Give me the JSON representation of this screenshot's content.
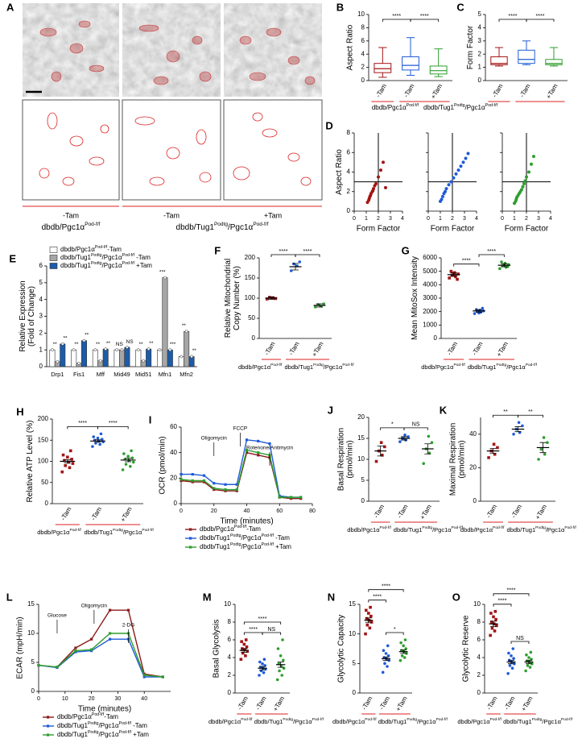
{
  "genotypes": [
    [
      "dbdb/Pgc1α",
      "Pod-f/f"
    ],
    [
      "dbdb/Tug1",
      "Podtg",
      "/Pgc1α",
      "Pod-f/f"
    ]
  ],
  "panel_a": {
    "panel": "A",
    "labels": [
      "-Tam",
      "-Tam",
      "+Tam"
    ]
  },
  "chart_data": [
    {
      "type": "box",
      "panel": "B",
      "ylabel": "Aspect Ratio",
      "ylim": [
        0,
        10
      ],
      "yticks": [
        0,
        2,
        4,
        6,
        8,
        10
      ],
      "categories": [
        "-Tam",
        "-Tam",
        "+Tam"
      ],
      "colors": [
        "#a31515",
        "#1f5bd8",
        "#2e9e2e"
      ],
      "boxes": [
        {
          "low": 0.5,
          "q1": 1.2,
          "median": 1.8,
          "q3": 2.6,
          "high": 5.0
        },
        {
          "low": 0.8,
          "q1": 1.6,
          "median": 2.3,
          "q3": 3.6,
          "high": 6.5
        },
        {
          "low": 0.6,
          "q1": 1.0,
          "median": 1.5,
          "q3": 2.2,
          "high": 4.8
        }
      ],
      "annotations": [
        "****",
        "****"
      ]
    },
    {
      "type": "box",
      "panel": "C",
      "ylabel": "Form Factor",
      "ylim": [
        0,
        5
      ],
      "yticks": [
        0,
        1,
        2,
        3,
        4,
        5
      ],
      "categories": [
        "-Tam",
        "-Tam",
        "+Tam"
      ],
      "colors": [
        "#a31515",
        "#1f5bd8",
        "#2e9e2e"
      ],
      "boxes": [
        {
          "low": 1.1,
          "q1": 1.2,
          "median": 1.3,
          "q3": 1.8,
          "high": 2.5
        },
        {
          "low": 1.2,
          "q1": 1.3,
          "median": 1.6,
          "q3": 2.3,
          "high": 3.0
        },
        {
          "low": 1.1,
          "q1": 1.2,
          "median": 1.3,
          "q3": 1.6,
          "high": 2.5
        }
      ],
      "annotations": [
        "****",
        "****"
      ]
    },
    {
      "type": "scatter",
      "panel": "D",
      "ylabel": "Aspect Ratio",
      "xlabel": "Form Factor",
      "xlim": [
        0,
        4
      ],
      "xticks": [
        0,
        1,
        2,
        3,
        4
      ],
      "ylim": [
        0,
        8
      ],
      "yticks": [
        0,
        2,
        4,
        6,
        8
      ],
      "ref_x": 2,
      "ref_y": 3,
      "series": [
        {
          "color": "#a31515",
          "x": [
            1.1,
            1.2,
            1.25,
            1.3,
            1.35,
            1.4,
            1.5,
            1.55,
            1.6,
            1.7,
            1.8,
            2.0,
            2.2,
            2.4,
            2.6
          ],
          "y": [
            0.9,
            1.1,
            1.3,
            1.5,
            1.6,
            1.8,
            2.0,
            2.1,
            2.3,
            2.6,
            2.8,
            3.5,
            4.2,
            5.0,
            2.4
          ]
        },
        {
          "color": "#1f5bd8",
          "x": [
            1.0,
            1.1,
            1.2,
            1.3,
            1.4,
            1.5,
            1.7,
            1.9,
            2.1,
            2.3,
            2.5,
            2.7,
            2.9,
            3.1,
            3.3
          ],
          "y": [
            1.0,
            1.2,
            1.5,
            1.8,
            2.0,
            2.3,
            2.7,
            3.0,
            3.4,
            3.8,
            4.2,
            4.6,
            5.0,
            5.4,
            5.9
          ]
        },
        {
          "color": "#2e9e2e",
          "x": [
            1.0,
            1.1,
            1.15,
            1.2,
            1.3,
            1.4,
            1.5,
            1.6,
            1.7,
            1.8,
            1.9,
            2.0,
            2.2,
            2.4,
            2.6
          ],
          "y": [
            0.8,
            1.0,
            1.2,
            1.4,
            1.6,
            1.8,
            2.0,
            2.2,
            2.5,
            2.8,
            3.1,
            3.5,
            4.0,
            4.8,
            5.6
          ]
        }
      ]
    },
    {
      "type": "bar",
      "panel": "E",
      "ylabel": [
        "Relative Expression",
        "(Fold of Change)"
      ],
      "ylim": [
        0,
        6
      ],
      "yticks": [
        0,
        1,
        2,
        3,
        4,
        5,
        6
      ],
      "categories": [
        "Drp1",
        "Fis1",
        "Mff",
        "Mid49",
        "Mid51",
        "Mfn1",
        "Mfn2"
      ],
      "series": [
        {
          "name": [
            "dbdb/Pgc1α",
            "Pod-f/f",
            "-Tam"
          ],
          "color": "#ffffff",
          "values": [
            1.0,
            1.0,
            1.0,
            1.0,
            1.0,
            1.0,
            0.6
          ]
        },
        {
          "name": [
            "dbdb/Tug1",
            "Podtg",
            "/Pgc1α",
            "Pod-f/f",
            " -Tam"
          ],
          "color": "#a6a6a6",
          "values": [
            0.3,
            0.2,
            0.35,
            1.0,
            0.35,
            5.3,
            2.1
          ]
        },
        {
          "name": [
            "dbdb/Tug1",
            "Podtg",
            "/Pgc1α",
            "Pod-f/f",
            " +Tam"
          ],
          "color": "#1c5ca8",
          "values": [
            1.35,
            1.55,
            1.05,
            1.15,
            1.05,
            1.0,
            0.6
          ]
        }
      ],
      "annotations": [
        "**",
        "**",
        "**",
        "**",
        "**",
        "**",
        "NS",
        "NS",
        "**",
        "**",
        "***",
        "***",
        "**",
        "**"
      ]
    },
    {
      "type": "dot",
      "panel": "F",
      "ylabel": [
        "Relative Mitochondrial",
        "Copy Number (%)"
      ],
      "ylim": [
        0,
        200
      ],
      "yticks": [
        0,
        50,
        100,
        150,
        200
      ],
      "categories": [
        "-Tam",
        "-Tam",
        "+Tam"
      ],
      "colors": [
        "#a31515",
        "#1f5bd8",
        "#2e9e2e"
      ],
      "values": [
        100,
        178,
        82
      ],
      "errors": [
        3,
        8,
        4
      ],
      "points": [
        [
          98,
          101,
          102,
          99
        ],
        [
          168,
          180,
          185,
          190
        ],
        [
          78,
          80,
          84,
          86
        ]
      ],
      "annotations": [
        "****",
        "****"
      ]
    },
    {
      "type": "dot",
      "panel": "G",
      "ylabel": "Mean MitoSox Intensity",
      "ylim": [
        0,
        6000
      ],
      "yticks": [
        0,
        1000,
        2000,
        3000,
        4000,
        5000,
        6000
      ],
      "categories": [
        "-Tam",
        "-Tam",
        "+Tam"
      ],
      "colors": [
        "#a31515",
        "#1f5bd8",
        "#2e9e2e"
      ],
      "values": [
        4750,
        2050,
        5450
      ],
      "errors": [
        120,
        100,
        110
      ],
      "points": [
        [
          4500,
          4600,
          4700,
          4800,
          4900,
          5000,
          4400,
          4850
        ],
        [
          1850,
          1950,
          2000,
          2050,
          2100,
          2150,
          2250,
          1900
        ],
        [
          5200,
          5300,
          5400,
          5500,
          5600,
          5700,
          5350,
          5450
        ]
      ],
      "annotations": [
        "****",
        "****"
      ]
    },
    {
      "type": "dot",
      "panel": "H",
      "ylabel": "Relative ATP Level (%)",
      "ylim": [
        0,
        200
      ],
      "yticks": [
        0,
        50,
        100,
        150,
        200
      ],
      "categories": [
        "-Tam",
        "-Tam",
        "+Tam"
      ],
      "colors": [
        "#a31515",
        "#1f5bd8",
        "#2e9e2e"
      ],
      "values": [
        100,
        148,
        103
      ],
      "errors": [
        4,
        3,
        4
      ],
      "points": [
        [
          75,
          85,
          90,
          95,
          98,
          102,
          105,
          110,
          115,
          125
        ],
        [
          135,
          140,
          143,
          146,
          148,
          150,
          152,
          155,
          158,
          165
        ],
        [
          80,
          88,
          93,
          98,
          102,
          105,
          108,
          112,
          118,
          125
        ]
      ],
      "annotations": [
        "****",
        "****"
      ]
    },
    {
      "type": "line",
      "panel": "I",
      "ylabel": "OCR (pmol/min)",
      "xlabel": "Time (minutes)",
      "xlim": [
        0,
        80
      ],
      "xticks": [
        0,
        20,
        40,
        60,
        80
      ],
      "ylim": [
        0,
        60
      ],
      "yticks": [
        0,
        20,
        40,
        60
      ],
      "x": [
        0,
        7,
        14,
        20,
        27,
        34,
        40,
        47,
        54,
        60,
        67,
        73
      ],
      "series": [
        {
          "name": [
            "dbdb/Pgc1α",
            "Pod-f/f",
            "-Tam"
          ],
          "color": "#8b1a1a",
          "values": [
            18,
            17,
            17,
            11,
            10,
            10,
            40,
            38,
            36,
            5,
            4,
            4
          ]
        },
        {
          "name": [
            "dbdb/Tug1",
            "Podtg",
            "/Pgc1α",
            "Pod-f/f",
            " -Tam"
          ],
          "color": "#1f5bd8",
          "values": [
            23,
            23,
            22,
            16,
            15,
            15,
            50,
            49,
            47,
            6,
            5,
            5
          ]
        },
        {
          "name": [
            "dbdb/Tug1",
            "Podtg",
            "/Pgc1α",
            "Pod-f/f",
            " +Tam"
          ],
          "color": "#2e9e2e",
          "values": [
            19,
            18,
            18,
            12,
            11,
            11,
            42,
            40,
            38,
            5,
            5,
            5
          ]
        }
      ],
      "annotations": [
        {
          "text": "Oligomycin",
          "x": 20
        },
        {
          "text": "FCCP",
          "x": 36
        },
        {
          "text": "Rotenone/Antimycin",
          "x": 54
        }
      ]
    },
    {
      "type": "dot",
      "panel": "J",
      "ylabel": [
        "Basal Respiration",
        "(pmol/min)"
      ],
      "ylim": [
        0,
        20
      ],
      "yticks": [
        0,
        5,
        10,
        15,
        20
      ],
      "categories": [
        "-Tam",
        "-Tam",
        "+Tam"
      ],
      "colors": [
        "#a31515",
        "#1f5bd8",
        "#2e9e2e"
      ],
      "values": [
        12,
        15,
        12.5
      ],
      "errors": [
        1.2,
        0.4,
        1.2
      ],
      "points": [
        [
          9.5,
          11,
          12,
          13,
          14
        ],
        [
          14.2,
          14.6,
          15,
          15.4,
          15.8
        ],
        [
          9,
          11.5,
          12.5,
          14,
          15.5
        ]
      ],
      "annotations": [
        "*",
        "NS"
      ]
    },
    {
      "type": "dot",
      "panel": "K",
      "ylabel": [
        "Maximal Respiration",
        "(pmol/min)"
      ],
      "ylim": [
        0,
        50
      ],
      "yticks": [
        0,
        20,
        40
      ],
      "categories": [
        "-Tam",
        "-Tam",
        "+Tam"
      ],
      "colors": [
        "#a31515",
        "#1f5bd8",
        "#2e9e2e"
      ],
      "values": [
        30,
        43,
        32
      ],
      "errors": [
        1.5,
        1.5,
        3
      ],
      "points": [
        [
          26,
          28,
          30,
          32,
          34
        ],
        [
          40,
          41,
          43,
          45,
          47
        ],
        [
          25,
          28,
          31,
          35,
          38
        ]
      ],
      "annotations": [
        "**",
        "**"
      ]
    },
    {
      "type": "line",
      "panel": "L",
      "ylabel": "ECAR (mpH/min)",
      "xlabel": "Time (minutes)",
      "xlim": [
        0,
        50
      ],
      "xticks": [
        0,
        10,
        20,
        30,
        40
      ],
      "ylim": [
        0,
        15
      ],
      "yticks": [
        0,
        5,
        10,
        15
      ],
      "x": [
        0,
        7,
        14,
        20,
        27,
        34,
        40,
        47
      ],
      "series": [
        {
          "name": [
            "dbdb/Pgc1α",
            "Pod-f/f",
            "-Tam"
          ],
          "color": "#8b1a1a",
          "values": [
            4.5,
            4.2,
            7.5,
            9,
            14,
            14,
            3,
            2.5
          ]
        },
        {
          "name": [
            "dbdb/Tug1",
            "Podtg",
            "/Pgc1α",
            "Pod-f/f",
            " -Tam"
          ],
          "color": "#1f5bd8",
          "values": [
            4.5,
            4.1,
            6.8,
            7,
            9,
            9,
            2.5,
            2.5
          ]
        },
        {
          "name": [
            "dbdb/Tug1",
            "Podtg",
            "/Pgc1α",
            "Pod-f/f",
            " +Tam"
          ],
          "color": "#2e9e2e",
          "values": [
            4.5,
            4.2,
            7,
            7.2,
            10,
            10,
            2.8,
            2.5
          ]
        }
      ],
      "annotations": [
        {
          "text": "Glucose",
          "x": 7
        },
        {
          "text": "Oligomycin",
          "x": 21
        },
        {
          "text": "2-DG",
          "x": 34
        }
      ]
    },
    {
      "type": "dot",
      "panel": "M",
      "ylabel": "Basal Glycolysis",
      "ylim": [
        0,
        10
      ],
      "yticks": [
        0,
        2,
        4,
        6,
        8,
        10
      ],
      "categories": [
        "-Tam",
        "-Tam",
        "+Tam"
      ],
      "colors": [
        "#a31515",
        "#1f5bd8",
        "#2e9e2e"
      ],
      "values": [
        4.8,
        2.8,
        3.2
      ],
      "errors": [
        0.2,
        0.2,
        0.3
      ],
      "points": [
        [
          3.8,
          4.2,
          4.5,
          4.7,
          4.9,
          5.0,
          5.2,
          5.5,
          5.8,
          6.0
        ],
        [
          2.0,
          2.3,
          2.5,
          2.7,
          2.8,
          2.9,
          3.1,
          3.3,
          3.5,
          3.8
        ],
        [
          1.5,
          2.0,
          2.5,
          2.8,
          3.0,
          3.3,
          3.7,
          4.2,
          5.0,
          6.0
        ]
      ],
      "annotations": [
        "****",
        "****",
        "NS"
      ]
    },
    {
      "type": "dot",
      "panel": "N",
      "ylabel": "Glycolytic Capacity",
      "ylim": [
        0,
        15
      ],
      "yticks": [
        0,
        5,
        10,
        15
      ],
      "categories": [
        "-Tam",
        "-Tam",
        "+Tam"
      ],
      "colors": [
        "#a31515",
        "#1f5bd8",
        "#2e9e2e"
      ],
      "values": [
        12.3,
        5.8,
        7.0
      ],
      "errors": [
        0.4,
        0.3,
        0.3
      ],
      "points": [
        [
          10,
          11,
          11.5,
          12,
          12.3,
          12.6,
          13,
          13.5,
          14,
          14.5
        ],
        [
          3.5,
          4.5,
          5,
          5.5,
          5.8,
          6,
          6.3,
          6.7,
          7.2,
          8
        ],
        [
          5.5,
          6,
          6.3,
          6.7,
          7,
          7.2,
          7.5,
          8,
          8.5,
          9
        ]
      ],
      "annotations": [
        "****",
        "****",
        "*"
      ]
    },
    {
      "type": "dot",
      "panel": "O",
      "ylabel": "Glycolytic Reserve",
      "ylim": [
        0,
        10
      ],
      "yticks": [
        0,
        2,
        4,
        6,
        8,
        10
      ],
      "categories": [
        "-Tam",
        "-Tam",
        "+Tam"
      ],
      "colors": [
        "#a31515",
        "#1f5bd8",
        "#2e9e2e"
      ],
      "values": [
        7.8,
        3.5,
        3.5
      ],
      "errors": [
        0.3,
        0.2,
        0.2
      ],
      "points": [
        [
          6.5,
          7,
          7.3,
          7.6,
          7.8,
          8,
          8.3,
          8.6,
          9,
          9.2
        ],
        [
          2.2,
          2.8,
          3.1,
          3.3,
          3.5,
          3.7,
          3.9,
          4.2,
          4.5,
          5
        ],
        [
          2.5,
          2.9,
          3.1,
          3.3,
          3.5,
          3.6,
          3.8,
          4.0,
          4.3,
          4.6
        ]
      ],
      "annotations": [
        "****",
        "****",
        "NS"
      ]
    }
  ]
}
